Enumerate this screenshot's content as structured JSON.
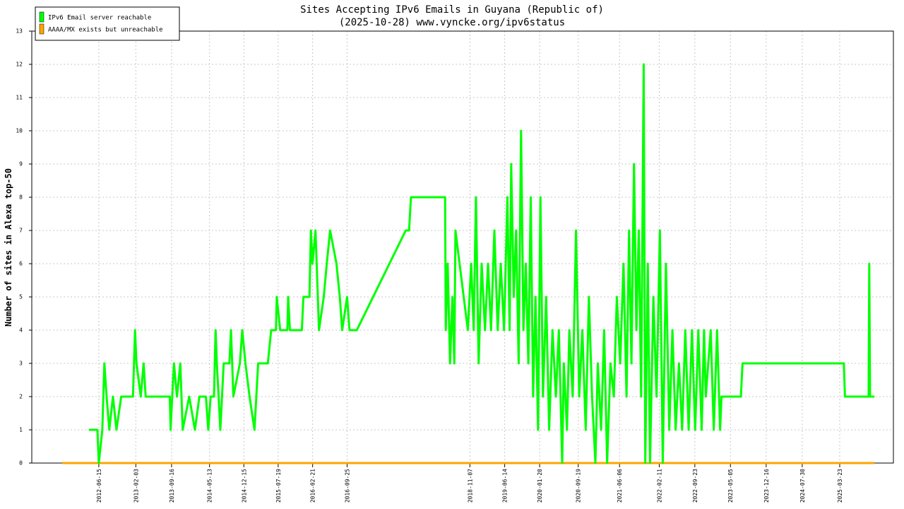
{
  "chart_data": {
    "type": "line",
    "title": "Sites Accepting IPv6 Emails in Guyana (Republic of)",
    "subtitle": "(2025-10-28) www.vyncke.org/ipv6status",
    "y_label": "Number of sites in Alexa top-50",
    "legend_position": "upper-left",
    "grid": true,
    "xlim": [
      "2011-04-20",
      "2026-02-24"
    ],
    "xticks": [
      "2012-06-15",
      "2013-02-03",
      "2013-09-16",
      "2014-05-13",
      "2014-12-15",
      "2015-07-19",
      "2016-02-21",
      "2016-09-25",
      "2018-11-07",
      "2019-06-14",
      "2020-01-20",
      "2020-09-19",
      "2021-06-06",
      "2022-02-11",
      "2022-09-23",
      "2023-05-05",
      "2023-12-16",
      "2024-07-30",
      "2025-03-23"
    ],
    "ylim": [
      0,
      13
    ],
    "yticks": [
      0,
      1,
      2,
      3,
      4,
      5,
      6,
      7,
      8,
      9,
      10,
      11,
      12,
      13
    ],
    "series": [
      {
        "name": "IPv6 Email server reachable",
        "color": "#00ff00",
        "x": [
          "2012-04-14",
          "2012-06-06",
          "2012-06-15",
          "2012-07-07",
          "2012-07-20",
          "2012-08-03",
          "2012-08-20",
          "2012-09-12",
          "2012-10-04",
          "2012-11-03",
          "2013-01-16",
          "2013-01-29",
          "2013-02-07",
          "2013-03-06",
          "2013-03-24",
          "2013-04-06",
          "2013-09-05",
          "2013-09-10",
          "2013-09-20",
          "2013-10-01",
          "2013-10-20",
          "2013-11-10",
          "2013-11-25",
          "2014-01-05",
          "2014-02-10",
          "2014-03-10",
          "2014-04-20",
          "2014-05-05",
          "2014-05-20",
          "2014-06-10",
          "2014-06-20",
          "2014-06-28",
          "2014-07-20",
          "2014-08-10",
          "2014-09-15",
          "2014-09-25",
          "2014-10-10",
          "2014-11-20",
          "2014-12-05",
          "2014-12-25",
          "2015-01-20",
          "2015-02-20",
          "2015-03-15",
          "2015-05-15",
          "2015-06-05",
          "2015-07-05",
          "2015-07-10",
          "2015-08-01",
          "2015-09-15",
          "2015-09-20",
          "2015-10-01",
          "2015-12-15",
          "2015-12-25",
          "2016-02-01",
          "2016-02-10",
          "2016-02-20",
          "2016-03-10",
          "2016-04-01",
          "2016-05-01",
          "2016-05-20",
          "2016-06-10",
          "2016-07-20",
          "2016-08-10",
          "2016-08-25",
          "2016-09-25",
          "2016-10-10",
          "2016-11-25",
          "2017-09-29",
          "2017-10-20",
          "2017-11-01",
          "2018-06-04",
          "2018-06-08",
          "2018-06-20",
          "2018-07-05",
          "2018-07-20",
          "2018-08-01",
          "2018-08-08",
          "2018-10-25",
          "2018-11-15",
          "2018-12-01",
          "2018-12-15",
          "2019-01-01",
          "2019-01-20",
          "2019-02-10",
          "2019-03-01",
          "2019-03-20",
          "2019-04-10",
          "2019-05-01",
          "2019-05-20",
          "2019-06-10",
          "2019-07-01",
          "2019-07-15",
          "2019-07-25",
          "2019-08-10",
          "2019-08-25",
          "2019-09-10",
          "2019-09-25",
          "2019-10-10",
          "2019-10-25",
          "2019-11-10",
          "2019-11-25",
          "2019-12-10",
          "2019-12-25",
          "2020-01-10",
          "2020-01-25",
          "2020-02-10",
          "2020-03-01",
          "2020-03-20",
          "2020-04-10",
          "2020-05-01",
          "2020-05-20",
          "2020-06-10",
          "2020-06-20",
          "2020-07-10",
          "2020-07-25",
          "2020-08-15",
          "2020-09-05",
          "2020-09-25",
          "2020-10-15",
          "2020-11-05",
          "2020-11-25",
          "2020-12-15",
          "2021-01-05",
          "2021-01-20",
          "2021-02-10",
          "2021-03-01",
          "2021-03-20",
          "2021-04-10",
          "2021-05-01",
          "2021-05-20",
          "2021-06-10",
          "2021-07-01",
          "2021-07-20",
          "2021-08-05",
          "2021-08-20",
          "2021-09-05",
          "2021-09-20",
          "2021-10-05",
          "2021-10-20",
          "2021-11-05",
          "2021-11-15",
          "2021-12-01",
          "2021-12-15",
          "2022-01-05",
          "2022-01-25",
          "2022-02-15",
          "2022-03-05",
          "2022-03-25",
          "2022-04-15",
          "2022-05-05",
          "2022-05-25",
          "2022-06-15",
          "2022-07-05",
          "2022-07-25",
          "2022-08-15",
          "2022-09-05",
          "2022-09-25",
          "2022-10-15",
          "2022-11-05",
          "2022-11-20",
          "2022-12-01",
          "2023-01-01",
          "2023-01-20",
          "2023-02-10",
          "2023-03-01",
          "2023-03-10",
          "2023-07-10",
          "2023-07-20",
          "2025-04-18",
          "2025-04-25",
          "2025-09-21",
          "2025-09-25",
          "2025-09-30",
          "2025-10-28"
        ],
        "values": [
          1,
          1,
          0,
          1,
          3,
          2,
          1,
          2,
          1,
          2,
          2,
          4,
          3,
          2,
          3,
          2,
          2,
          1,
          2,
          3,
          2,
          3,
          1,
          2,
          1,
          2,
          2,
          1,
          2,
          2,
          4,
          3,
          1,
          3,
          3,
          4,
          2,
          3,
          4,
          3,
          2,
          1,
          3,
          3,
          4,
          4,
          5,
          4,
          4,
          5,
          4,
          4,
          5,
          5,
          7,
          6,
          7,
          4,
          5,
          6,
          7,
          6,
          5,
          4,
          5,
          4,
          4,
          7,
          7,
          8,
          8,
          4,
          6,
          3,
          5,
          3,
          7,
          4,
          6,
          4,
          8,
          3,
          6,
          4,
          6,
          4,
          7,
          4,
          6,
          4,
          8,
          4,
          9,
          5,
          7,
          3,
          10,
          4,
          6,
          3,
          8,
          2,
          5,
          1,
          8,
          2,
          5,
          1,
          4,
          2,
          4,
          0,
          3,
          1,
          4,
          2,
          7,
          2,
          4,
          1,
          5,
          2,
          0,
          3,
          1,
          4,
          0,
          3,
          2,
          5,
          3,
          6,
          2,
          7,
          3,
          9,
          4,
          7,
          2,
          12,
          0,
          6,
          0,
          5,
          2,
          7,
          0,
          6,
          1,
          4,
          1,
          3,
          1,
          4,
          1,
          4,
          1,
          4,
          1,
          4,
          2,
          4,
          1,
          4,
          1,
          2,
          2,
          3,
          3,
          2,
          2,
          6,
          2,
          2
        ]
      },
      {
        "name": "AAAA/MX exists but unreachable",
        "color": "#ffa500",
        "x": [
          "2011-10-28",
          "2025-10-28"
        ],
        "values": [
          0,
          0
        ]
      }
    ]
  }
}
